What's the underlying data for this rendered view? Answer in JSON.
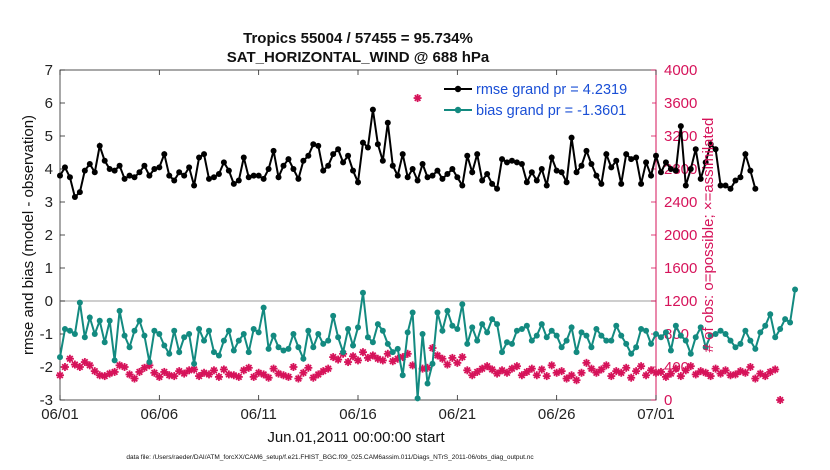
{
  "chart_data": {
    "type": "line",
    "title_line1": "Tropics 55004 / 57455 = 95.734%",
    "title_line2": "SAT_HORIZONTAL_WIND @ 688 hPa",
    "xlabel": "Jun.01,2011 00:00:00 start",
    "ylabel_left": "rmse and bias (model - observation)",
    "ylabel_right": "# of obs: o=possible; ×=assimilated",
    "ylim_left": [
      -3,
      7
    ],
    "ylim_right": [
      0,
      4000
    ],
    "xlim_days": [
      0,
      30
    ],
    "x_ticks": [
      {
        "day": 0,
        "label": "06/01"
      },
      {
        "day": 5,
        "label": "06/06"
      },
      {
        "day": 10,
        "label": "06/11"
      },
      {
        "day": 15,
        "label": "06/16"
      },
      {
        "day": 20,
        "label": "06/21"
      },
      {
        "day": 25,
        "label": "06/26"
      },
      {
        "day": 30,
        "label": "07/01"
      }
    ],
    "y_ticks_left": [
      -3,
      -2,
      -1,
      0,
      1,
      2,
      3,
      4,
      5,
      6,
      7
    ],
    "y_ticks_right": [
      0,
      400,
      800,
      1200,
      1600,
      2000,
      2400,
      2800,
      3200,
      3600,
      4000
    ],
    "zero_line": 0,
    "time_step_days": 0.25,
    "legend": {
      "position": "top-right",
      "rmse_label": "rmse grand pr =  4.2319",
      "bias_label": "bias grand pr = -1.3601"
    },
    "colors": {
      "rmse": "#000000",
      "bias": "#138a80",
      "obs": "#d6135a",
      "rmse_legend_text": "#1a4fd6",
      "bias_legend_text": "#1a4fd6",
      "right_axis": "#d6135a",
      "zero_line": "#b0b0b0"
    },
    "series": [
      {
        "name": "rmse",
        "axis": "left",
        "values": [
          3.8,
          4.05,
          3.75,
          3.15,
          3.3,
          3.95,
          4.15,
          3.9,
          4.7,
          4.25,
          4.0,
          3.95,
          4.1,
          3.7,
          3.8,
          3.75,
          3.9,
          4.1,
          3.8,
          4.0,
          4.05,
          4.45,
          3.8,
          3.65,
          3.9,
          3.8,
          4.05,
          3.5,
          4.35,
          4.45,
          3.7,
          3.75,
          3.85,
          4.2,
          3.95,
          3.55,
          3.65,
          4.35,
          3.75,
          3.8,
          3.8,
          3.7,
          4.0,
          4.55,
          3.75,
          4.1,
          4.3,
          4.0,
          3.7,
          4.25,
          4.4,
          4.75,
          4.7,
          3.95,
          4.1,
          4.45,
          4.6,
          4.2,
          4.4,
          3.95,
          3.6,
          4.8,
          4.65,
          5.8,
          4.75,
          4.25,
          5.4,
          4.1,
          3.8,
          4.45,
          3.75,
          4.0,
          3.65,
          4.15,
          3.75,
          3.8,
          3.95,
          3.7,
          3.85,
          4.0,
          3.75,
          3.5,
          4.4,
          3.9,
          4.45,
          3.65,
          3.85,
          3.55,
          3.4,
          4.3,
          4.2,
          4.25,
          4.2,
          4.15,
          3.6,
          3.9,
          3.65,
          4.0,
          3.5,
          4.35,
          3.95,
          3.9,
          3.6,
          4.95,
          3.9,
          4.1,
          4.55,
          4.15,
          3.8,
          3.55,
          4.45,
          4.05,
          4.25,
          3.55,
          4.45,
          4.3,
          4.35,
          3.55,
          4.2,
          3.8,
          4.4,
          3.9,
          4.2,
          4.0,
          3.95,
          5.3,
          3.5,
          4.0,
          4.6,
          3.7,
          4.2,
          4.75,
          4.6,
          3.5,
          3.5,
          3.4,
          3.65,
          3.75,
          4.45,
          3.95,
          3.4
        ]
      },
      {
        "name": "bias",
        "axis": "left",
        "values": [
          -1.7,
          -0.85,
          -0.9,
          -1.0,
          -0.05,
          -1.1,
          -0.5,
          -1.0,
          -0.6,
          -1.25,
          -0.6,
          -1.8,
          -0.3,
          -1.05,
          -1.4,
          -0.9,
          -0.6,
          -1.05,
          -1.85,
          -0.9,
          -1.0,
          -1.35,
          -1.6,
          -0.9,
          -1.55,
          -1.1,
          -1.0,
          -1.9,
          -0.85,
          -1.2,
          -0.9,
          -1.55,
          -1.65,
          -1.2,
          -0.9,
          -1.5,
          -1.2,
          -1.0,
          -1.55,
          -0.85,
          -0.95,
          -0.2,
          -1.45,
          -1.05,
          -1.4,
          -1.5,
          -1.45,
          -1.0,
          -1.4,
          -1.75,
          -0.9,
          -1.4,
          -1.0,
          -1.3,
          -1.2,
          -0.45,
          -1.1,
          -1.55,
          -0.85,
          -1.35,
          -0.8,
          0.25,
          -1.1,
          -1.25,
          -0.7,
          -0.9,
          -1.3,
          -1.55,
          -1.45,
          -2.25,
          -0.95,
          -0.35,
          -2.95,
          -1.0,
          -2.5,
          -1.9,
          -0.35,
          -0.9,
          -0.3,
          -0.75,
          -0.85,
          -0.1,
          -1.3,
          -0.8,
          -1.2,
          -0.7,
          -0.95,
          -0.55,
          -0.7,
          -1.55,
          -1.25,
          -1.3,
          -0.9,
          -0.85,
          -0.75,
          -1.2,
          -1.05,
          -0.7,
          -1.1,
          -0.9,
          -1.05,
          -1.4,
          -1.2,
          -0.8,
          -1.55,
          -0.95,
          -1.05,
          -1.4,
          -0.85,
          -1.05,
          -1.2,
          -1.2,
          -0.75,
          -1.05,
          -1.3,
          -1.6,
          -1.4,
          -0.85,
          -0.9,
          -1.3,
          -1.0,
          -1.1,
          -0.95,
          -1.5,
          -0.75,
          -1.05,
          -1.2,
          -1.6,
          -1.1,
          -0.8,
          -1.4,
          -1.05,
          -1.0,
          -0.9,
          -1.0,
          -1.2,
          -1.4,
          -1.3,
          -0.9,
          -1.2,
          -1.45,
          -0.95,
          -0.75,
          -0.4,
          -1.1,
          -0.85,
          -0.55,
          -0.65,
          0.35
        ]
      },
      {
        "name": "obs_assimilated",
        "axis": "right",
        "values": [
          300,
          400,
          500,
          430,
          400,
          460,
          420,
          350,
          300,
          290,
          320,
          340,
          420,
          400,
          310,
          260,
          340,
          390,
          420,
          330,
          280,
          340,
          300,
          290,
          350,
          320,
          360,
          370,
          290,
          330,
          310,
          360,
          280,
          370,
          310,
          300,
          280,
          360,
          390,
          280,
          330,
          310,
          270,
          380,
          320,
          300,
          280,
          400,
          260,
          330,
          390,
          270,
          310,
          350,
          380,
          520,
          490,
          560,
          460,
          530,
          480,
          580,
          510,
          540,
          500,
          480,
          560,
          470,
          500,
          520,
          560,
          420,
          3660,
          380,
          390,
          630,
          540,
          500,
          430,
          510,
          450,
          520,
          360,
          300,
          340,
          380,
          410,
          370,
          320,
          360,
          330,
          380,
          410,
          300,
          340,
          380,
          300,
          370,
          290,
          420,
          330,
          350,
          260,
          300,
          240,
          330,
          450,
          380,
          330,
          370,
          420,
          290,
          350,
          330,
          390,
          270,
          350,
          410,
          300,
          360,
          330,
          340,
          280,
          320,
          380,
          290,
          360,
          410,
          310,
          350,
          330,
          290,
          380,
          320,
          360,
          300,
          310,
          350,
          330,
          400,
          260,
          320,
          290,
          340,
          370,
          0
        ]
      }
    ]
  },
  "footer": {
    "data_file": "data file: /Users/raeder/DAI/ATM_forcXX/CAM6_setup/f.e21.FHIST_BGC.f09_025.CAM6assim.011/Diags_NTrS_2011-06/obs_diag_output.nc"
  }
}
